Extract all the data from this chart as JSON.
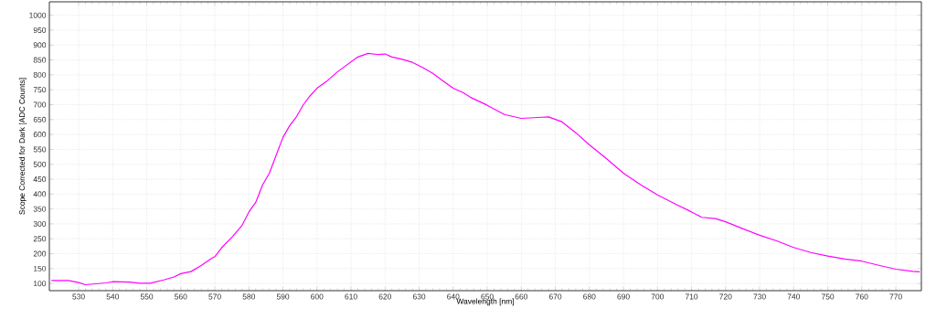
{
  "chart_data": {
    "type": "line",
    "xlabel": "Wavelength [nm]",
    "ylabel": "Scope Corrected for Dark [ADC Counts]",
    "xlim": [
      521.4,
      777.5
    ],
    "ylim": [
      76,
      1045
    ],
    "xticks": [
      530,
      540,
      550,
      560,
      570,
      580,
      590,
      600,
      610,
      620,
      630,
      640,
      650,
      660,
      670,
      680,
      690,
      700,
      710,
      720,
      730,
      740,
      750,
      760,
      770
    ],
    "yticks": [
      100,
      150,
      200,
      250,
      300,
      350,
      400,
      450,
      500,
      550,
      600,
      650,
      700,
      750,
      800,
      850,
      900,
      950,
      1000
    ],
    "grid": true,
    "marker": "none",
    "line_style": "solid",
    "series": [
      {
        "color": "#ff00ff",
        "x": [
          522,
          527,
          530,
          532,
          535,
          538,
          540,
          545,
          548,
          551,
          555,
          558,
          560,
          563,
          566,
          569,
          570,
          572,
          575,
          578,
          580,
          582,
          584,
          586,
          588,
          590,
          592,
          594,
          596,
          598,
          600,
          603,
          606,
          609,
          612,
          615,
          618,
          620,
          622,
          625,
          628,
          631,
          634,
          637,
          640,
          643,
          645,
          650,
          655,
          660,
          665,
          668,
          672,
          676,
          680,
          685,
          690,
          695,
          700,
          705,
          710,
          713,
          717,
          720,
          725,
          730,
          735,
          740,
          745,
          750,
          755,
          760,
          765,
          770,
          775,
          777
        ],
        "values": [
          110,
          110,
          103,
          96,
          99,
          102,
          106,
          105,
          101,
          101,
          112,
          122,
          133,
          140,
          160,
          184,
          190,
          220,
          255,
          295,
          340,
          372,
          430,
          470,
          530,
          590,
          630,
          660,
          700,
          730,
          755,
          780,
          810,
          835,
          860,
          872,
          868,
          870,
          860,
          852,
          842,
          825,
          805,
          780,
          755,
          740,
          725,
          698,
          667,
          654,
          657,
          659,
          642,
          606,
          565,
          519,
          470,
          432,
          397,
          368,
          340,
          322,
          318,
          307,
          284,
          262,
          243,
          221,
          204,
          192,
          182,
          175,
          161,
          148,
          141,
          139
        ]
      }
    ]
  }
}
